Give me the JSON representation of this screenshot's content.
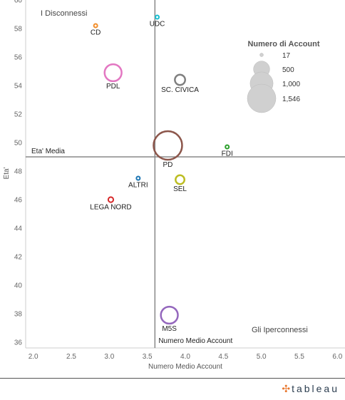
{
  "chart_data": {
    "type": "scatter",
    "xlabel": "Numero Medio Account",
    "ylabel": "Eta'",
    "xlim": [
      1.9,
      6.1
    ],
    "ylim": [
      35.6,
      60
    ],
    "x_ticks": [
      2.0,
      2.5,
      3.0,
      3.5,
      4.0,
      4.5,
      5.0,
      5.5,
      6.0
    ],
    "y_ticks": [
      36,
      38,
      40,
      42,
      44,
      46,
      48,
      50,
      52,
      54,
      56,
      58,
      60
    ],
    "grid": false,
    "reference_lines": {
      "vertical": {
        "value": 3.6,
        "label": "Numero Medio Account"
      },
      "horizontal": {
        "value": 49.0,
        "label": "Eta' Media"
      }
    },
    "annotations": [
      {
        "text": "I Disconnessi",
        "position": "top-left"
      },
      {
        "text": "Gli Iperconnessi",
        "position": "bottom-right"
      }
    ],
    "points": [
      {
        "label": "CD",
        "x": 2.82,
        "y": 58.2,
        "accounts": 17,
        "color": "#f28e2b"
      },
      {
        "label": "UDC",
        "x": 3.63,
        "y": 58.8,
        "accounts": 17,
        "color": "#17becf"
      },
      {
        "label": "PDL",
        "x": 3.05,
        "y": 54.9,
        "accounts": 550,
        "color": "#e377c2"
      },
      {
        "label": "SC. CIVICA",
        "x": 3.93,
        "y": 54.4,
        "accounts": 200,
        "color": "#7f7f7f"
      },
      {
        "label": "PD",
        "x": 3.77,
        "y": 49.8,
        "accounts": 1546,
        "color": "#8c564b"
      },
      {
        "label": "FDI",
        "x": 4.55,
        "y": 49.7,
        "accounts": 17,
        "color": "#2ca02c"
      },
      {
        "label": "ALTRI",
        "x": 3.38,
        "y": 47.5,
        "accounts": 17,
        "color": "#1f77b4"
      },
      {
        "label": "SEL",
        "x": 3.93,
        "y": 47.4,
        "accounts": 150,
        "color": "#bcbd22"
      },
      {
        "label": "LEGA NORD",
        "x": 3.02,
        "y": 46.0,
        "accounts": 50,
        "color": "#d62728"
      },
      {
        "label": "M5S",
        "x": 3.79,
        "y": 37.9,
        "accounts": 550,
        "color": "#9467bd"
      }
    ],
    "size_legend": {
      "title": "Numero di Account",
      "position": "top-right",
      "entries": [
        {
          "label": "17",
          "value": 17
        },
        {
          "label": "500",
          "value": 500
        },
        {
          "label": "1,000",
          "value": 1000
        },
        {
          "label": "1,546",
          "value": 1546
        }
      ]
    }
  },
  "footer": {
    "brand": "tableau"
  }
}
